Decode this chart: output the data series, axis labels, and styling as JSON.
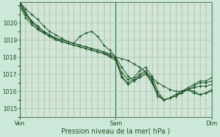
{
  "bg_color": "#cce8d8",
  "plot_bg_color": "#cce8d8",
  "grid_major_y_color": "#a8c8b8",
  "grid_minor_x_color": "#e89898",
  "grid_major_x_color": "#3a5a3a",
  "line_color": "#1a5020",
  "ylim": [
    1014.5,
    1021.2
  ],
  "yticks": [
    1015,
    1016,
    1017,
    1018,
    1019,
    1020
  ],
  "xlabel": "Pression niveau de la mer( hPa )",
  "xtick_labels": [
    "Ven",
    "Sam",
    "Dim"
  ],
  "xtick_positions": [
    0,
    48,
    96
  ],
  "xmin": 0,
  "xmax": 96,
  "minor_x_step": 3,
  "label_fontsize": 6,
  "xlabel_fontsize": 7,
  "series": [
    [
      0,
      1021.2,
      3,
      1020.8,
      6,
      1020.5,
      9,
      1020.2,
      12,
      1019.8,
      15,
      1019.5,
      18,
      1019.3,
      21,
      1019.1,
      24,
      1018.9,
      27,
      1018.8,
      30,
      1018.7,
      33,
      1018.6,
      36,
      1018.5,
      39,
      1018.4,
      42,
      1018.3,
      45,
      1018.2,
      48,
      1018.0,
      51,
      1017.9,
      54,
      1017.8,
      57,
      1017.6,
      60,
      1017.4,
      63,
      1017.1,
      66,
      1016.8,
      69,
      1016.5,
      72,
      1016.3,
      75,
      1016.1,
      78,
      1016.0,
      81,
      1016.0,
      84,
      1016.1,
      87,
      1016.2,
      90,
      1016.3,
      93,
      1016.3,
      96,
      1016.4
    ],
    [
      0,
      1021.0,
      3,
      1020.5,
      6,
      1020.1,
      9,
      1019.8,
      12,
      1019.5,
      15,
      1019.3,
      18,
      1019.1,
      21,
      1019.0,
      24,
      1018.9,
      27,
      1018.8,
      30,
      1019.2,
      33,
      1019.4,
      36,
      1019.5,
      39,
      1019.2,
      42,
      1018.7,
      45,
      1018.4,
      48,
      1018.0,
      51,
      1017.4,
      54,
      1016.9,
      57,
      1016.6,
      60,
      1016.8,
      63,
      1017.0,
      66,
      1016.5,
      69,
      1015.8,
      72,
      1015.5,
      75,
      1015.6,
      78,
      1015.8,
      81,
      1016.0,
      84,
      1016.1,
      87,
      1015.9,
      90,
      1015.8,
      93,
      1015.9,
      96,
      1016.0
    ],
    [
      0,
      1021.0,
      3,
      1020.3,
      6,
      1019.9,
      9,
      1019.6,
      12,
      1019.4,
      15,
      1019.2,
      18,
      1019.1,
      21,
      1019.0,
      24,
      1018.9,
      27,
      1018.8,
      30,
      1018.7,
      33,
      1018.6,
      36,
      1018.5,
      39,
      1018.4,
      42,
      1018.3,
      45,
      1018.1,
      48,
      1017.9,
      51,
      1017.1,
      54,
      1016.7,
      57,
      1016.8,
      60,
      1017.2,
      63,
      1017.4,
      66,
      1016.9,
      69,
      1016.0,
      72,
      1015.5,
      75,
      1015.6,
      78,
      1015.7,
      81,
      1015.9,
      84,
      1016.1,
      87,
      1016.0,
      90,
      1015.8,
      93,
      1015.9,
      96,
      1016.1
    ],
    [
      0,
      1021.2,
      3,
      1020.5,
      6,
      1020.0,
      9,
      1019.7,
      12,
      1019.4,
      15,
      1019.2,
      18,
      1019.0,
      21,
      1018.9,
      24,
      1018.8,
      27,
      1018.7,
      30,
      1018.6,
      33,
      1018.5,
      36,
      1018.4,
      39,
      1018.3,
      42,
      1018.2,
      45,
      1018.1,
      48,
      1017.9,
      51,
      1016.9,
      54,
      1016.5,
      57,
      1016.7,
      60,
      1017.0,
      63,
      1017.2,
      66,
      1016.7,
      69,
      1015.8,
      72,
      1015.5,
      75,
      1015.6,
      78,
      1015.8,
      81,
      1015.9,
      84,
      1016.1,
      87,
      1016.3,
      90,
      1016.5,
      93,
      1016.5,
      96,
      1016.6
    ],
    [
      0,
      1021.3,
      3,
      1020.6,
      6,
      1020.1,
      9,
      1019.8,
      12,
      1019.5,
      15,
      1019.3,
      18,
      1019.1,
      21,
      1018.9,
      24,
      1018.8,
      27,
      1018.7,
      30,
      1018.6,
      33,
      1018.5,
      36,
      1018.4,
      39,
      1018.3,
      42,
      1018.2,
      45,
      1018.0,
      48,
      1017.8,
      51,
      1016.8,
      54,
      1016.4,
      57,
      1016.6,
      60,
      1016.9,
      63,
      1017.1,
      66,
      1016.6,
      69,
      1015.7,
      72,
      1015.5,
      75,
      1015.6,
      78,
      1015.8,
      81,
      1016.0,
      84,
      1016.2,
      87,
      1016.4,
      90,
      1016.6,
      93,
      1016.6,
      96,
      1016.8
    ]
  ]
}
